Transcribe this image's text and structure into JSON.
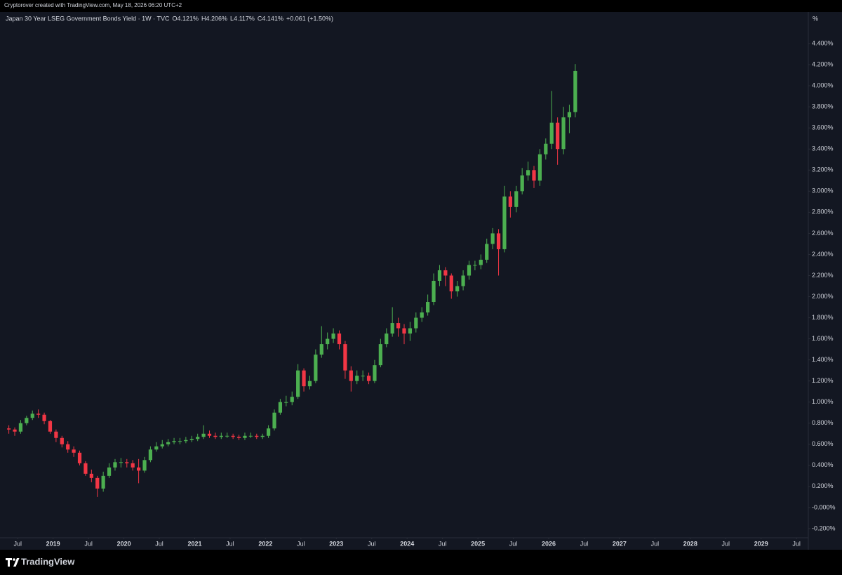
{
  "header": {
    "credit": "Cryptorover created with TradingView.com, May 18, 2026 06:20 UTC+2"
  },
  "footer": {
    "brand": "TradingView"
  },
  "chart_data": {
    "type": "candlestick",
    "title": "Japan 30 Year LSEG Government Bonds Yield · 1W · TVC",
    "ohlc": [
      {
        "label": "O",
        "value": "4.121%"
      },
      {
        "label": "H",
        "value": "4.206%"
      },
      {
        "label": "L",
        "value": "4.117%"
      },
      {
        "label": "C",
        "value": "4.141%"
      }
    ],
    "change": "+0.061 (+1.50%)",
    "unit": "%",
    "up_color": "#4caf50",
    "down_color": "#f23645",
    "grid": false,
    "x": [
      "2018-05",
      "2018-06",
      "2018-07",
      "2018-08",
      "2018-09",
      "2018-10",
      "2018-11",
      "2018-12",
      "2019-01",
      "2019-02",
      "2019-03",
      "2019-04",
      "2019-05",
      "2019-06",
      "2019-07",
      "2019-08",
      "2019-09",
      "2019-10",
      "2019-11",
      "2019-12",
      "2020-01",
      "2020-02",
      "2020-03",
      "2020-04",
      "2020-05",
      "2020-06",
      "2020-07",
      "2020-08",
      "2020-09",
      "2020-10",
      "2020-11",
      "2020-12",
      "2021-01",
      "2021-02",
      "2021-03",
      "2021-04",
      "2021-05",
      "2021-06",
      "2021-07",
      "2021-08",
      "2021-09",
      "2021-10",
      "2021-11",
      "2021-12",
      "2022-01",
      "2022-02",
      "2022-03",
      "2022-04",
      "2022-05",
      "2022-06",
      "2022-07",
      "2022-08",
      "2022-09",
      "2022-10",
      "2022-11",
      "2022-12",
      "2023-01",
      "2023-02",
      "2023-03",
      "2023-04",
      "2023-05",
      "2023-06",
      "2023-07",
      "2023-08",
      "2023-09",
      "2023-10",
      "2023-11",
      "2023-12",
      "2024-01",
      "2024-02",
      "2024-03",
      "2024-04",
      "2024-05",
      "2024-06",
      "2024-07",
      "2024-08",
      "2024-09",
      "2024-10",
      "2024-11",
      "2024-12",
      "2025-01",
      "2025-02",
      "2025-03",
      "2025-04",
      "2025-05",
      "2025-06",
      "2025-07",
      "2025-08",
      "2025-09",
      "2025-10",
      "2025-11",
      "2025-12",
      "2026-01",
      "2026-02",
      "2026-03",
      "2026-04",
      "2026-05"
    ],
    "open": [
      0.75,
      0.74,
      0.72,
      0.8,
      0.85,
      0.89,
      0.88,
      0.82,
      0.72,
      0.66,
      0.6,
      0.55,
      0.52,
      0.42,
      0.32,
      0.28,
      0.18,
      0.3,
      0.38,
      0.43,
      0.43,
      0.42,
      0.38,
      0.35,
      0.45,
      0.55,
      0.58,
      0.6,
      0.62,
      0.63,
      0.63,
      0.64,
      0.65,
      0.67,
      0.7,
      0.68,
      0.67,
      0.68,
      0.68,
      0.67,
      0.66,
      0.68,
      0.68,
      0.67,
      0.68,
      0.75,
      0.9,
      1.0,
      1.0,
      1.05,
      1.3,
      1.15,
      1.2,
      1.45,
      1.55,
      1.6,
      1.65,
      1.55,
      1.3,
      1.2,
      1.25,
      1.25,
      1.2,
      1.35,
      1.55,
      1.65,
      1.75,
      1.7,
      1.65,
      1.7,
      1.8,
      1.85,
      1.95,
      2.15,
      2.25,
      2.2,
      2.05,
      2.1,
      2.2,
      2.3,
      2.3,
      2.35,
      2.5,
      2.6,
      2.45,
      2.95,
      2.85,
      3.0,
      3.15,
      3.2,
      3.1,
      3.35,
      3.45,
      3.65,
      3.4,
      3.7,
      3.75
    ],
    "high": [
      0.78,
      0.76,
      0.83,
      0.87,
      0.92,
      0.93,
      0.9,
      0.83,
      0.74,
      0.68,
      0.63,
      0.58,
      0.54,
      0.44,
      0.36,
      0.3,
      0.34,
      0.42,
      0.46,
      0.47,
      0.46,
      0.45,
      0.46,
      0.48,
      0.58,
      0.62,
      0.64,
      0.65,
      0.66,
      0.66,
      0.67,
      0.68,
      0.7,
      0.78,
      0.73,
      0.71,
      0.71,
      0.71,
      0.7,
      0.69,
      0.71,
      0.71,
      0.7,
      0.7,
      0.78,
      0.93,
      1.03,
      1.06,
      1.1,
      1.36,
      1.32,
      1.25,
      1.5,
      1.72,
      1.66,
      1.7,
      1.68,
      1.58,
      1.34,
      1.3,
      1.3,
      1.28,
      1.4,
      1.6,
      1.7,
      1.9,
      1.8,
      1.74,
      1.76,
      1.85,
      1.9,
      2.02,
      2.22,
      2.3,
      2.28,
      2.22,
      2.15,
      2.25,
      2.34,
      2.34,
      2.4,
      2.55,
      2.65,
      2.64,
      3.05,
      3.0,
      3.05,
      3.22,
      3.28,
      3.24,
      3.4,
      3.5,
      3.95,
      3.7,
      3.8,
      3.82,
      4.206
    ],
    "low": [
      0.7,
      0.68,
      0.7,
      0.78,
      0.83,
      0.85,
      0.79,
      0.7,
      0.62,
      0.57,
      0.52,
      0.48,
      0.4,
      0.3,
      0.24,
      0.1,
      0.15,
      0.28,
      0.35,
      0.38,
      0.38,
      0.35,
      0.23,
      0.33,
      0.43,
      0.53,
      0.56,
      0.58,
      0.6,
      0.6,
      0.61,
      0.62,
      0.63,
      0.65,
      0.66,
      0.65,
      0.65,
      0.66,
      0.65,
      0.64,
      0.64,
      0.66,
      0.65,
      0.65,
      0.66,
      0.73,
      0.88,
      0.96,
      0.97,
      1.03,
      1.1,
      1.12,
      1.18,
      1.42,
      1.5,
      1.56,
      1.5,
      1.22,
      1.1,
      1.17,
      1.2,
      1.17,
      1.18,
      1.33,
      1.52,
      1.62,
      1.62,
      1.55,
      1.58,
      1.66,
      1.76,
      1.82,
      1.92,
      2.1,
      2.1,
      1.98,
      2.0,
      2.06,
      2.16,
      2.25,
      2.26,
      2.32,
      2.45,
      2.2,
      2.42,
      2.75,
      2.8,
      2.97,
      3.1,
      3.03,
      3.05,
      3.3,
      3.4,
      3.25,
      3.35,
      3.55,
      3.7
    ],
    "close": [
      0.74,
      0.72,
      0.8,
      0.85,
      0.89,
      0.88,
      0.82,
      0.72,
      0.66,
      0.6,
      0.55,
      0.52,
      0.42,
      0.32,
      0.28,
      0.18,
      0.3,
      0.38,
      0.43,
      0.43,
      0.42,
      0.38,
      0.35,
      0.45,
      0.55,
      0.58,
      0.6,
      0.62,
      0.63,
      0.63,
      0.64,
      0.65,
      0.67,
      0.7,
      0.68,
      0.67,
      0.68,
      0.68,
      0.67,
      0.66,
      0.68,
      0.68,
      0.67,
      0.68,
      0.75,
      0.9,
      1.0,
      1.0,
      1.05,
      1.3,
      1.15,
      1.2,
      1.45,
      1.55,
      1.6,
      1.65,
      1.55,
      1.3,
      1.2,
      1.25,
      1.25,
      1.2,
      1.35,
      1.55,
      1.65,
      1.75,
      1.7,
      1.65,
      1.7,
      1.8,
      1.85,
      1.95,
      2.15,
      2.25,
      2.2,
      2.05,
      2.1,
      2.2,
      2.3,
      2.3,
      2.35,
      2.5,
      2.6,
      2.45,
      2.95,
      2.85,
      3.0,
      3.15,
      3.2,
      3.1,
      3.35,
      3.45,
      3.65,
      3.4,
      3.7,
      3.75,
      4.141
    ],
    "xlim": [
      "2018-04",
      "2029-09"
    ],
    "xticks": [
      {
        "value": "2018-07",
        "label": "Jul"
      },
      {
        "value": "2019-01",
        "label": "2019"
      },
      {
        "value": "2019-07",
        "label": "Jul"
      },
      {
        "value": "2020-01",
        "label": "2020"
      },
      {
        "value": "2020-07",
        "label": "Jul"
      },
      {
        "value": "2021-01",
        "label": "2021"
      },
      {
        "value": "2021-07",
        "label": "Jul"
      },
      {
        "value": "2022-01",
        "label": "2022"
      },
      {
        "value": "2022-07",
        "label": "Jul"
      },
      {
        "value": "2023-01",
        "label": "2023"
      },
      {
        "value": "2023-07",
        "label": "Jul"
      },
      {
        "value": "2024-01",
        "label": "2024"
      },
      {
        "value": "2024-07",
        "label": "Jul"
      },
      {
        "value": "2025-01",
        "label": "2025"
      },
      {
        "value": "2025-07",
        "label": "Jul"
      },
      {
        "value": "2026-01",
        "label": "2026"
      },
      {
        "value": "2026-07",
        "label": "Jul"
      },
      {
        "value": "2027-01",
        "label": "2027"
      },
      {
        "value": "2027-07",
        "label": "Jul"
      },
      {
        "value": "2028-01",
        "label": "2028"
      },
      {
        "value": "2028-07",
        "label": "Jul"
      },
      {
        "value": "2029-01",
        "label": "2029"
      },
      {
        "value": "2029-07",
        "label": "Jul"
      }
    ],
    "ylim": [
      -0.287,
      4.7
    ],
    "yticks": [
      {
        "value": -0.2,
        "label": "-0.200%"
      },
      {
        "value": 0,
        "label": "-0.000%"
      },
      {
        "value": 0.2,
        "label": "0.200%"
      },
      {
        "value": 0.4,
        "label": "0.400%"
      },
      {
        "value": 0.6,
        "label": "0.600%"
      },
      {
        "value": 0.8,
        "label": "0.800%"
      },
      {
        "value": 1.0,
        "label": "1.000%"
      },
      {
        "value": 1.2,
        "label": "1.200%"
      },
      {
        "value": 1.4,
        "label": "1.400%"
      },
      {
        "value": 1.6,
        "label": "1.600%"
      },
      {
        "value": 1.8,
        "label": "1.800%"
      },
      {
        "value": 2.0,
        "label": "2.000%"
      },
      {
        "value": 2.2,
        "label": "2.200%"
      },
      {
        "value": 2.4,
        "label": "2.400%"
      },
      {
        "value": 2.6,
        "label": "2.600%"
      },
      {
        "value": 2.8,
        "label": "2.800%"
      },
      {
        "value": 3.0,
        "label": "3.000%"
      },
      {
        "value": 3.2,
        "label": "3.200%"
      },
      {
        "value": 3.4,
        "label": "3.400%"
      },
      {
        "value": 3.6,
        "label": "3.600%"
      },
      {
        "value": 3.8,
        "label": "3.800%"
      },
      {
        "value": 4.0,
        "label": "4.000%"
      },
      {
        "value": 4.2,
        "label": "4.200%"
      },
      {
        "value": 4.4,
        "label": "4.400%"
      }
    ]
  }
}
